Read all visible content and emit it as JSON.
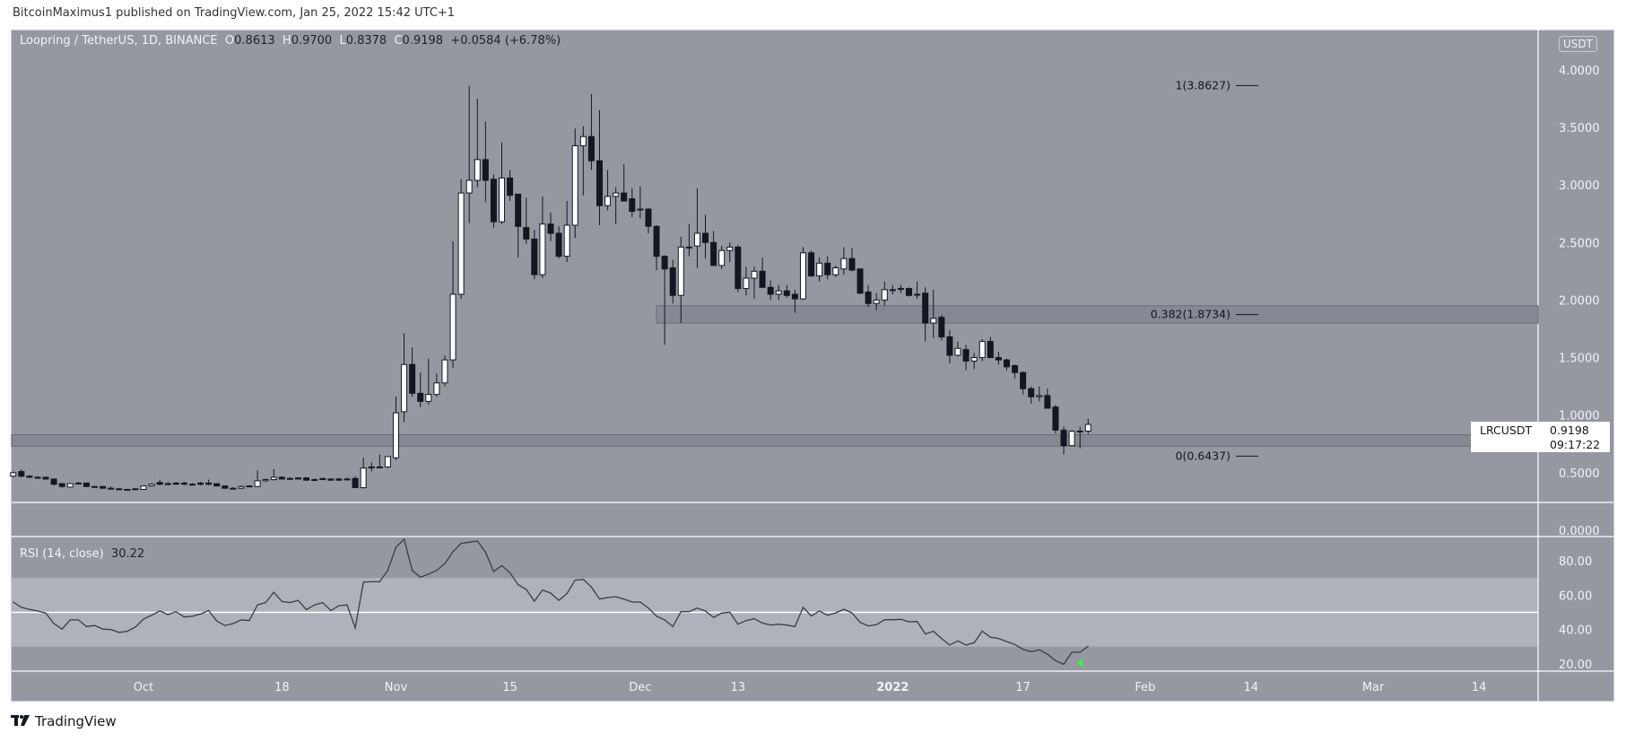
{
  "published": "BitcoinMaximus1 published on TradingView.com, Jan 25, 2022 15:42 UTC+1",
  "legend": {
    "symbol": "Loopring / TetherUS, 1D, BINANCE",
    "o_label": "O",
    "o": "0.8613",
    "h_label": "H",
    "h": "0.9700",
    "l_label": "L",
    "l": "0.8378",
    "c_label": "C",
    "c": "0.9198",
    "change": "+0.0584 (+6.78%)"
  },
  "currency_badge": "USDT",
  "price_label": {
    "symbol": "LRCUSDT",
    "price": "0.9198",
    "countdown": "09:17:22"
  },
  "rsi_legend": {
    "title": "RSI (14, close)",
    "value": "30.22"
  },
  "branding": {
    "logo_mark": "TV",
    "name": "TradingView"
  },
  "colors": {
    "background": "#9598a1",
    "rsi_band": "#afb2ba",
    "zone": "#868993",
    "bear_candle": "#131722",
    "bull_candle": "#ffffff",
    "rsi_line": "#3a3d44",
    "marker": "#33ff33"
  },
  "chart_data": [
    {
      "type": "candlestick",
      "title": "Loopring / TetherUS, 1D, BINANCE",
      "ylabel": "USDT",
      "ylim": [
        0,
        4.1
      ],
      "price_axis": {
        "ticks": [
          4,
          3.5,
          3,
          2.5,
          2,
          1.5,
          1,
          0.5,
          0
        ],
        "labels": [
          "4.0000",
          "3.5000",
          "3.0000",
          "2.5000",
          "2.0000",
          "1.5000",
          "1.0000",
          "0.5000",
          "0.0000"
        ]
      },
      "time_axis": [
        {
          "label": "Oct",
          "date": "2021-10-01"
        },
        {
          "label": "18",
          "date": "2021-10-18"
        },
        {
          "label": "Nov",
          "date": "2021-11-01"
        },
        {
          "label": "15",
          "date": "2021-11-15"
        },
        {
          "label": "Dec",
          "date": "2021-12-01"
        },
        {
          "label": "13",
          "date": "2021-12-13"
        },
        {
          "label": "2022",
          "date": "2022-01-01"
        },
        {
          "label": "17",
          "date": "2022-01-17"
        },
        {
          "label": "Feb",
          "date": "2022-02-01"
        },
        {
          "label": "14",
          "date": "2022-02-14"
        },
        {
          "label": "Mar",
          "date": "2022-03-01"
        },
        {
          "label": "14",
          "date": "2022-03-14"
        }
      ],
      "fib_levels": [
        {
          "level": 1,
          "price": 3.8627,
          "label": "1(3.8627)"
        },
        {
          "level": 0.382,
          "price": 1.8734,
          "label": "0.382(1.8734)"
        },
        {
          "level": 0,
          "price": 0.6437,
          "label": "0(0.6437)"
        }
      ],
      "zones": [
        {
          "from": "2021-12-03",
          "top": 1.95,
          "bottom": 1.8
        },
        {
          "from": "2021-09-14",
          "top": 0.83,
          "bottom": 0.73
        }
      ],
      "candles_format": [
        "date",
        "open",
        "high",
        "low",
        "close"
      ],
      "candles": [
        [
          "2021-09-15",
          0.47,
          0.51,
          0.46,
          0.5
        ],
        [
          "2021-09-16",
          0.51,
          0.53,
          0.46,
          0.47
        ],
        [
          "2021-09-17",
          0.47,
          0.48,
          0.455,
          0.46
        ],
        [
          "2021-09-18",
          0.46,
          0.47,
          0.45,
          0.46
        ],
        [
          "2021-09-19",
          0.46,
          0.465,
          0.44,
          0.445
        ],
        [
          "2021-09-20",
          0.445,
          0.45,
          0.39,
          0.4
        ],
        [
          "2021-09-21",
          0.405,
          0.41,
          0.37,
          0.38
        ],
        [
          "2021-09-22",
          0.375,
          0.41,
          0.37,
          0.405
        ],
        [
          "2021-09-23",
          0.41,
          0.42,
          0.4,
          0.41
        ],
        [
          "2021-09-24",
          0.41,
          0.41,
          0.38,
          0.38
        ],
        [
          "2021-09-25",
          0.38,
          0.385,
          0.37,
          0.375
        ],
        [
          "2021-09-26",
          0.38,
          0.385,
          0.36,
          0.365
        ],
        [
          "2021-09-27",
          0.365,
          0.38,
          0.355,
          0.36
        ],
        [
          "2021-09-28",
          0.36,
          0.365,
          0.35,
          0.355
        ],
        [
          "2021-09-29",
          0.355,
          0.36,
          0.35,
          0.355
        ],
        [
          "2021-09-30",
          0.36,
          0.365,
          0.35,
          0.355
        ],
        [
          "2021-10-01",
          0.355,
          0.39,
          0.35,
          0.385
        ],
        [
          "2021-10-02",
          0.385,
          0.41,
          0.38,
          0.4
        ],
        [
          "2021-10-03",
          0.415,
          0.44,
          0.39,
          0.4
        ],
        [
          "2021-10-04",
          0.405,
          0.42,
          0.395,
          0.4
        ],
        [
          "2021-10-05",
          0.41,
          0.42,
          0.4,
          0.4
        ],
        [
          "2021-10-06",
          0.41,
          0.42,
          0.39,
          0.4
        ],
        [
          "2021-10-07",
          0.4,
          0.41,
          0.395,
          0.4
        ],
        [
          "2021-10-08",
          0.41,
          0.42,
          0.39,
          0.4
        ],
        [
          "2021-10-09",
          0.41,
          0.44,
          0.39,
          0.4
        ],
        [
          "2021-10-10",
          0.405,
          0.41,
          0.38,
          0.385
        ],
        [
          "2021-10-11",
          0.385,
          0.39,
          0.36,
          0.365
        ],
        [
          "2021-10-12",
          0.365,
          0.375,
          0.355,
          0.365
        ],
        [
          "2021-10-13",
          0.365,
          0.39,
          0.36,
          0.38
        ],
        [
          "2021-10-14",
          0.385,
          0.39,
          0.375,
          0.38
        ],
        [
          "2021-10-15",
          0.38,
          0.52,
          0.375,
          0.43
        ],
        [
          "2021-10-16",
          0.43,
          0.45,
          0.42,
          0.44
        ],
        [
          "2021-10-17",
          0.44,
          0.53,
          0.43,
          0.46
        ],
        [
          "2021-10-18",
          0.46,
          0.47,
          0.44,
          0.445
        ],
        [
          "2021-10-19",
          0.45,
          0.46,
          0.44,
          0.45
        ],
        [
          "2021-10-20",
          0.455,
          0.46,
          0.445,
          0.445
        ],
        [
          "2021-10-21",
          0.455,
          0.46,
          0.43,
          0.435
        ],
        [
          "2021-10-22",
          0.44,
          0.45,
          0.43,
          0.435
        ],
        [
          "2021-10-23",
          0.45,
          0.455,
          0.44,
          0.44
        ],
        [
          "2021-10-24",
          0.445,
          0.45,
          0.43,
          0.435
        ],
        [
          "2021-10-25",
          0.445,
          0.455,
          0.43,
          0.435
        ],
        [
          "2021-10-26",
          0.445,
          0.46,
          0.44,
          0.44
        ],
        [
          "2021-10-27",
          0.45,
          0.47,
          0.37,
          0.37
        ],
        [
          "2021-10-28",
          0.37,
          0.63,
          0.36,
          0.54
        ],
        [
          "2021-10-29",
          0.55,
          0.59,
          0.51,
          0.55
        ],
        [
          "2021-10-30",
          0.55,
          0.66,
          0.54,
          0.55
        ],
        [
          "2021-10-31",
          0.55,
          0.64,
          0.54,
          0.64
        ],
        [
          "2021-11-01",
          0.63,
          1.16,
          0.61,
          1.02
        ],
        [
          "2021-11-02",
          1.03,
          1.71,
          0.94,
          1.44
        ],
        [
          "2021-11-03",
          1.44,
          1.59,
          1.16,
          1.19
        ],
        [
          "2021-11-04",
          1.19,
          1.37,
          1.07,
          1.12
        ],
        [
          "2021-11-05",
          1.12,
          1.49,
          1.09,
          1.18
        ],
        [
          "2021-11-06",
          1.18,
          1.36,
          1.16,
          1.28
        ],
        [
          "2021-11-07",
          1.28,
          1.52,
          1.25,
          1.48
        ],
        [
          "2021-11-08",
          1.48,
          2.51,
          1.41,
          2.05
        ],
        [
          "2021-11-09",
          2.05,
          3.05,
          2.01,
          2.93
        ],
        [
          "2021-11-10",
          2.93,
          3.86,
          2.67,
          3.04
        ],
        [
          "2021-11-11",
          3.04,
          3.75,
          2.98,
          3.22
        ],
        [
          "2021-11-12",
          3.22,
          3.55,
          2.85,
          3.04
        ],
        [
          "2021-11-13",
          3.05,
          3.09,
          2.63,
          2.68
        ],
        [
          "2021-11-14",
          2.68,
          3.37,
          2.66,
          3.06
        ],
        [
          "2021-11-15",
          3.06,
          3.13,
          2.86,
          2.91
        ],
        [
          "2021-11-16",
          2.92,
          2.92,
          2.37,
          2.64
        ],
        [
          "2021-11-17",
          2.63,
          2.89,
          2.49,
          2.53
        ],
        [
          "2021-11-18",
          2.53,
          2.61,
          2.18,
          2.22
        ],
        [
          "2021-11-19",
          2.22,
          2.9,
          2.19,
          2.66
        ],
        [
          "2021-11-20",
          2.66,
          2.76,
          2.51,
          2.58
        ],
        [
          "2021-11-21",
          2.58,
          2.64,
          2.36,
          2.38
        ],
        [
          "2021-11-22",
          2.38,
          2.86,
          2.33,
          2.65
        ],
        [
          "2021-11-23",
          2.65,
          3.49,
          2.54,
          3.34
        ],
        [
          "2021-11-24",
          3.34,
          3.51,
          2.91,
          3.42
        ],
        [
          "2021-11-25",
          3.42,
          3.79,
          3.13,
          3.21
        ],
        [
          "2021-11-26",
          3.21,
          3.65,
          2.65,
          2.82
        ],
        [
          "2021-11-27",
          2.82,
          3.13,
          2.78,
          2.9
        ],
        [
          "2021-11-28",
          2.9,
          2.98,
          2.66,
          2.93
        ],
        [
          "2021-11-29",
          2.93,
          3.18,
          2.86,
          2.86
        ],
        [
          "2021-11-30",
          2.88,
          2.97,
          2.72,
          2.77
        ],
        [
          "2021-12-01",
          2.79,
          2.99,
          2.71,
          2.79
        ],
        [
          "2021-12-02",
          2.79,
          2.8,
          2.58,
          2.64
        ],
        [
          "2021-12-03",
          2.64,
          2.65,
          2.26,
          2.38
        ],
        [
          "2021-12-04",
          2.38,
          2.39,
          1.61,
          2.27
        ],
        [
          "2021-12-05",
          2.28,
          2.35,
          1.97,
          2.04
        ],
        [
          "2021-12-06",
          2.04,
          2.55,
          1.8,
          2.46
        ],
        [
          "2021-12-07",
          2.46,
          2.66,
          2.38,
          2.46
        ],
        [
          "2021-12-08",
          2.47,
          2.97,
          2.28,
          2.58
        ],
        [
          "2021-12-09",
          2.58,
          2.74,
          2.36,
          2.5
        ],
        [
          "2021-12-10",
          2.5,
          2.6,
          2.3,
          2.3
        ],
        [
          "2021-12-11",
          2.3,
          2.47,
          2.27,
          2.43
        ],
        [
          "2021-12-12",
          2.43,
          2.5,
          2.33,
          2.46
        ],
        [
          "2021-12-13",
          2.46,
          2.48,
          2.07,
          2.1
        ],
        [
          "2021-12-14",
          2.1,
          2.29,
          2.04,
          2.19
        ],
        [
          "2021-12-15",
          2.19,
          2.29,
          2.01,
          2.25
        ],
        [
          "2021-12-16",
          2.25,
          2.37,
          2.11,
          2.11
        ],
        [
          "2021-12-17",
          2.11,
          2.17,
          2.0,
          2.05
        ],
        [
          "2021-12-18",
          2.05,
          2.13,
          2.0,
          2.08
        ],
        [
          "2021-12-19",
          2.08,
          2.13,
          2.02,
          2.04
        ],
        [
          "2021-12-20",
          2.05,
          2.09,
          1.89,
          2.01
        ],
        [
          "2021-12-21",
          2.01,
          2.46,
          2.0,
          2.41
        ],
        [
          "2021-12-22",
          2.41,
          2.43,
          2.2,
          2.21
        ],
        [
          "2021-12-23",
          2.21,
          2.37,
          2.16,
          2.32
        ],
        [
          "2021-12-24",
          2.32,
          2.38,
          2.18,
          2.22
        ],
        [
          "2021-12-25",
          2.22,
          2.3,
          2.2,
          2.28
        ],
        [
          "2021-12-26",
          2.27,
          2.46,
          2.22,
          2.36
        ],
        [
          "2021-12-27",
          2.36,
          2.45,
          2.25,
          2.26
        ],
        [
          "2021-12-28",
          2.27,
          2.27,
          2.05,
          2.06
        ],
        [
          "2021-12-29",
          2.07,
          2.13,
          1.94,
          1.97
        ],
        [
          "2021-12-30",
          1.97,
          2.06,
          1.91,
          2.0
        ],
        [
          "2021-12-31",
          2.0,
          2.16,
          1.95,
          2.09
        ],
        [
          "2022-01-01",
          2.09,
          2.13,
          2.05,
          2.09
        ],
        [
          "2022-01-02",
          2.1,
          2.13,
          2.06,
          2.1
        ],
        [
          "2022-01-03",
          2.1,
          2.11,
          2.03,
          2.04
        ],
        [
          "2022-01-04",
          2.05,
          2.16,
          2.01,
          2.05
        ],
        [
          "2022-01-05",
          2.06,
          2.11,
          1.64,
          1.8
        ],
        [
          "2022-01-06",
          1.8,
          2.09,
          1.67,
          1.84
        ],
        [
          "2022-01-07",
          1.85,
          1.87,
          1.65,
          1.68
        ],
        [
          "2022-01-08",
          1.68,
          1.74,
          1.45,
          1.52
        ],
        [
          "2022-01-09",
          1.52,
          1.64,
          1.51,
          1.58
        ],
        [
          "2022-01-10",
          1.57,
          1.61,
          1.39,
          1.47
        ],
        [
          "2022-01-11",
          1.47,
          1.54,
          1.4,
          1.5
        ],
        [
          "2022-01-12",
          1.5,
          1.66,
          1.47,
          1.64
        ],
        [
          "2022-01-13",
          1.64,
          1.68,
          1.5,
          1.5
        ],
        [
          "2022-01-14",
          1.5,
          1.55,
          1.44,
          1.48
        ],
        [
          "2022-01-15",
          1.48,
          1.49,
          1.39,
          1.42
        ],
        [
          "2022-01-16",
          1.43,
          1.44,
          1.32,
          1.37
        ],
        [
          "2022-01-17",
          1.37,
          1.38,
          1.18,
          1.23
        ],
        [
          "2022-01-18",
          1.23,
          1.25,
          1.1,
          1.16
        ],
        [
          "2022-01-19",
          1.16,
          1.25,
          1.12,
          1.17
        ],
        [
          "2022-01-20",
          1.17,
          1.23,
          1.06,
          1.06
        ],
        [
          "2022-01-21",
          1.07,
          1.09,
          0.84,
          0.87
        ],
        [
          "2022-01-22",
          0.87,
          0.9,
          0.66,
          0.735
        ],
        [
          "2022-01-23",
          0.735,
          0.87,
          0.73,
          0.86
        ],
        [
          "2022-01-24",
          0.86,
          0.9,
          0.71,
          0.8613
        ],
        [
          "2022-01-25",
          0.8613,
          0.97,
          0.8378,
          0.9198
        ]
      ]
    },
    {
      "type": "line",
      "title": "RSI (14, close)",
      "ylim": [
        15,
        95
      ],
      "bands": {
        "upper": 70,
        "middle": 50,
        "lower": 30
      },
      "rsi_axis": {
        "ticks": [
          80,
          60,
          40,
          20
        ],
        "labels": [
          "80.00",
          "60.00",
          "40.00",
          "20.00"
        ]
      },
      "marker_date": "2022-01-24",
      "values": [
        56.0,
        52.9,
        51.7,
        50.8,
        49.6,
        43.5,
        40.3,
        45.6,
        45.6,
        41.7,
        42.4,
        40.3,
        40.0,
        38.3,
        39.0,
        41.4,
        46.1,
        48.3,
        50.8,
        48.7,
        50.4,
        47.3,
        47.7,
        49.0,
        51.1,
        44.9,
        42.4,
        43.5,
        45.6,
        45.2,
        54.3,
        55.7,
        61.7,
        56.3,
        55.7,
        57.0,
        51.5,
        54.3,
        55.7,
        51.0,
        53.9,
        54.3,
        40.9,
        67.5,
        67.8,
        67.8,
        74.4,
        87.8,
        92.5,
        74.4,
        70.4,
        72.2,
        74.4,
        78.3,
        85.2,
        90.1,
        90.8,
        91.5,
        84.9,
        73.7,
        77.2,
        73.0,
        66.1,
        63.3,
        56.5,
        63.0,
        61.2,
        57.0,
        60.9,
        68.7,
        69.2,
        64.7,
        57.7,
        58.6,
        59.1,
        57.7,
        56.0,
        56.0,
        52.5,
        47.8,
        45.6,
        41.7,
        50.4,
        50.4,
        52.5,
        50.8,
        47.0,
        49.6,
        50.1,
        43.1,
        45.2,
        46.3,
        43.8,
        42.6,
        43.1,
        42.6,
        41.7,
        52.9,
        47.8,
        50.8,
        48.3,
        49.7,
        51.8,
        49.7,
        44.2,
        42.1,
        42.8,
        45.7,
        45.7,
        45.9,
        44.5,
        44.7,
        37.4,
        39.0,
        34.8,
        31.0,
        33.4,
        31.0,
        32.3,
        39.1,
        35.5,
        34.8,
        33.0,
        31.3,
        28.5,
        27.1,
        28.2,
        25.7,
        21.9,
        19.8,
        26.8,
        26.8,
        30.22
      ]
    }
  ]
}
